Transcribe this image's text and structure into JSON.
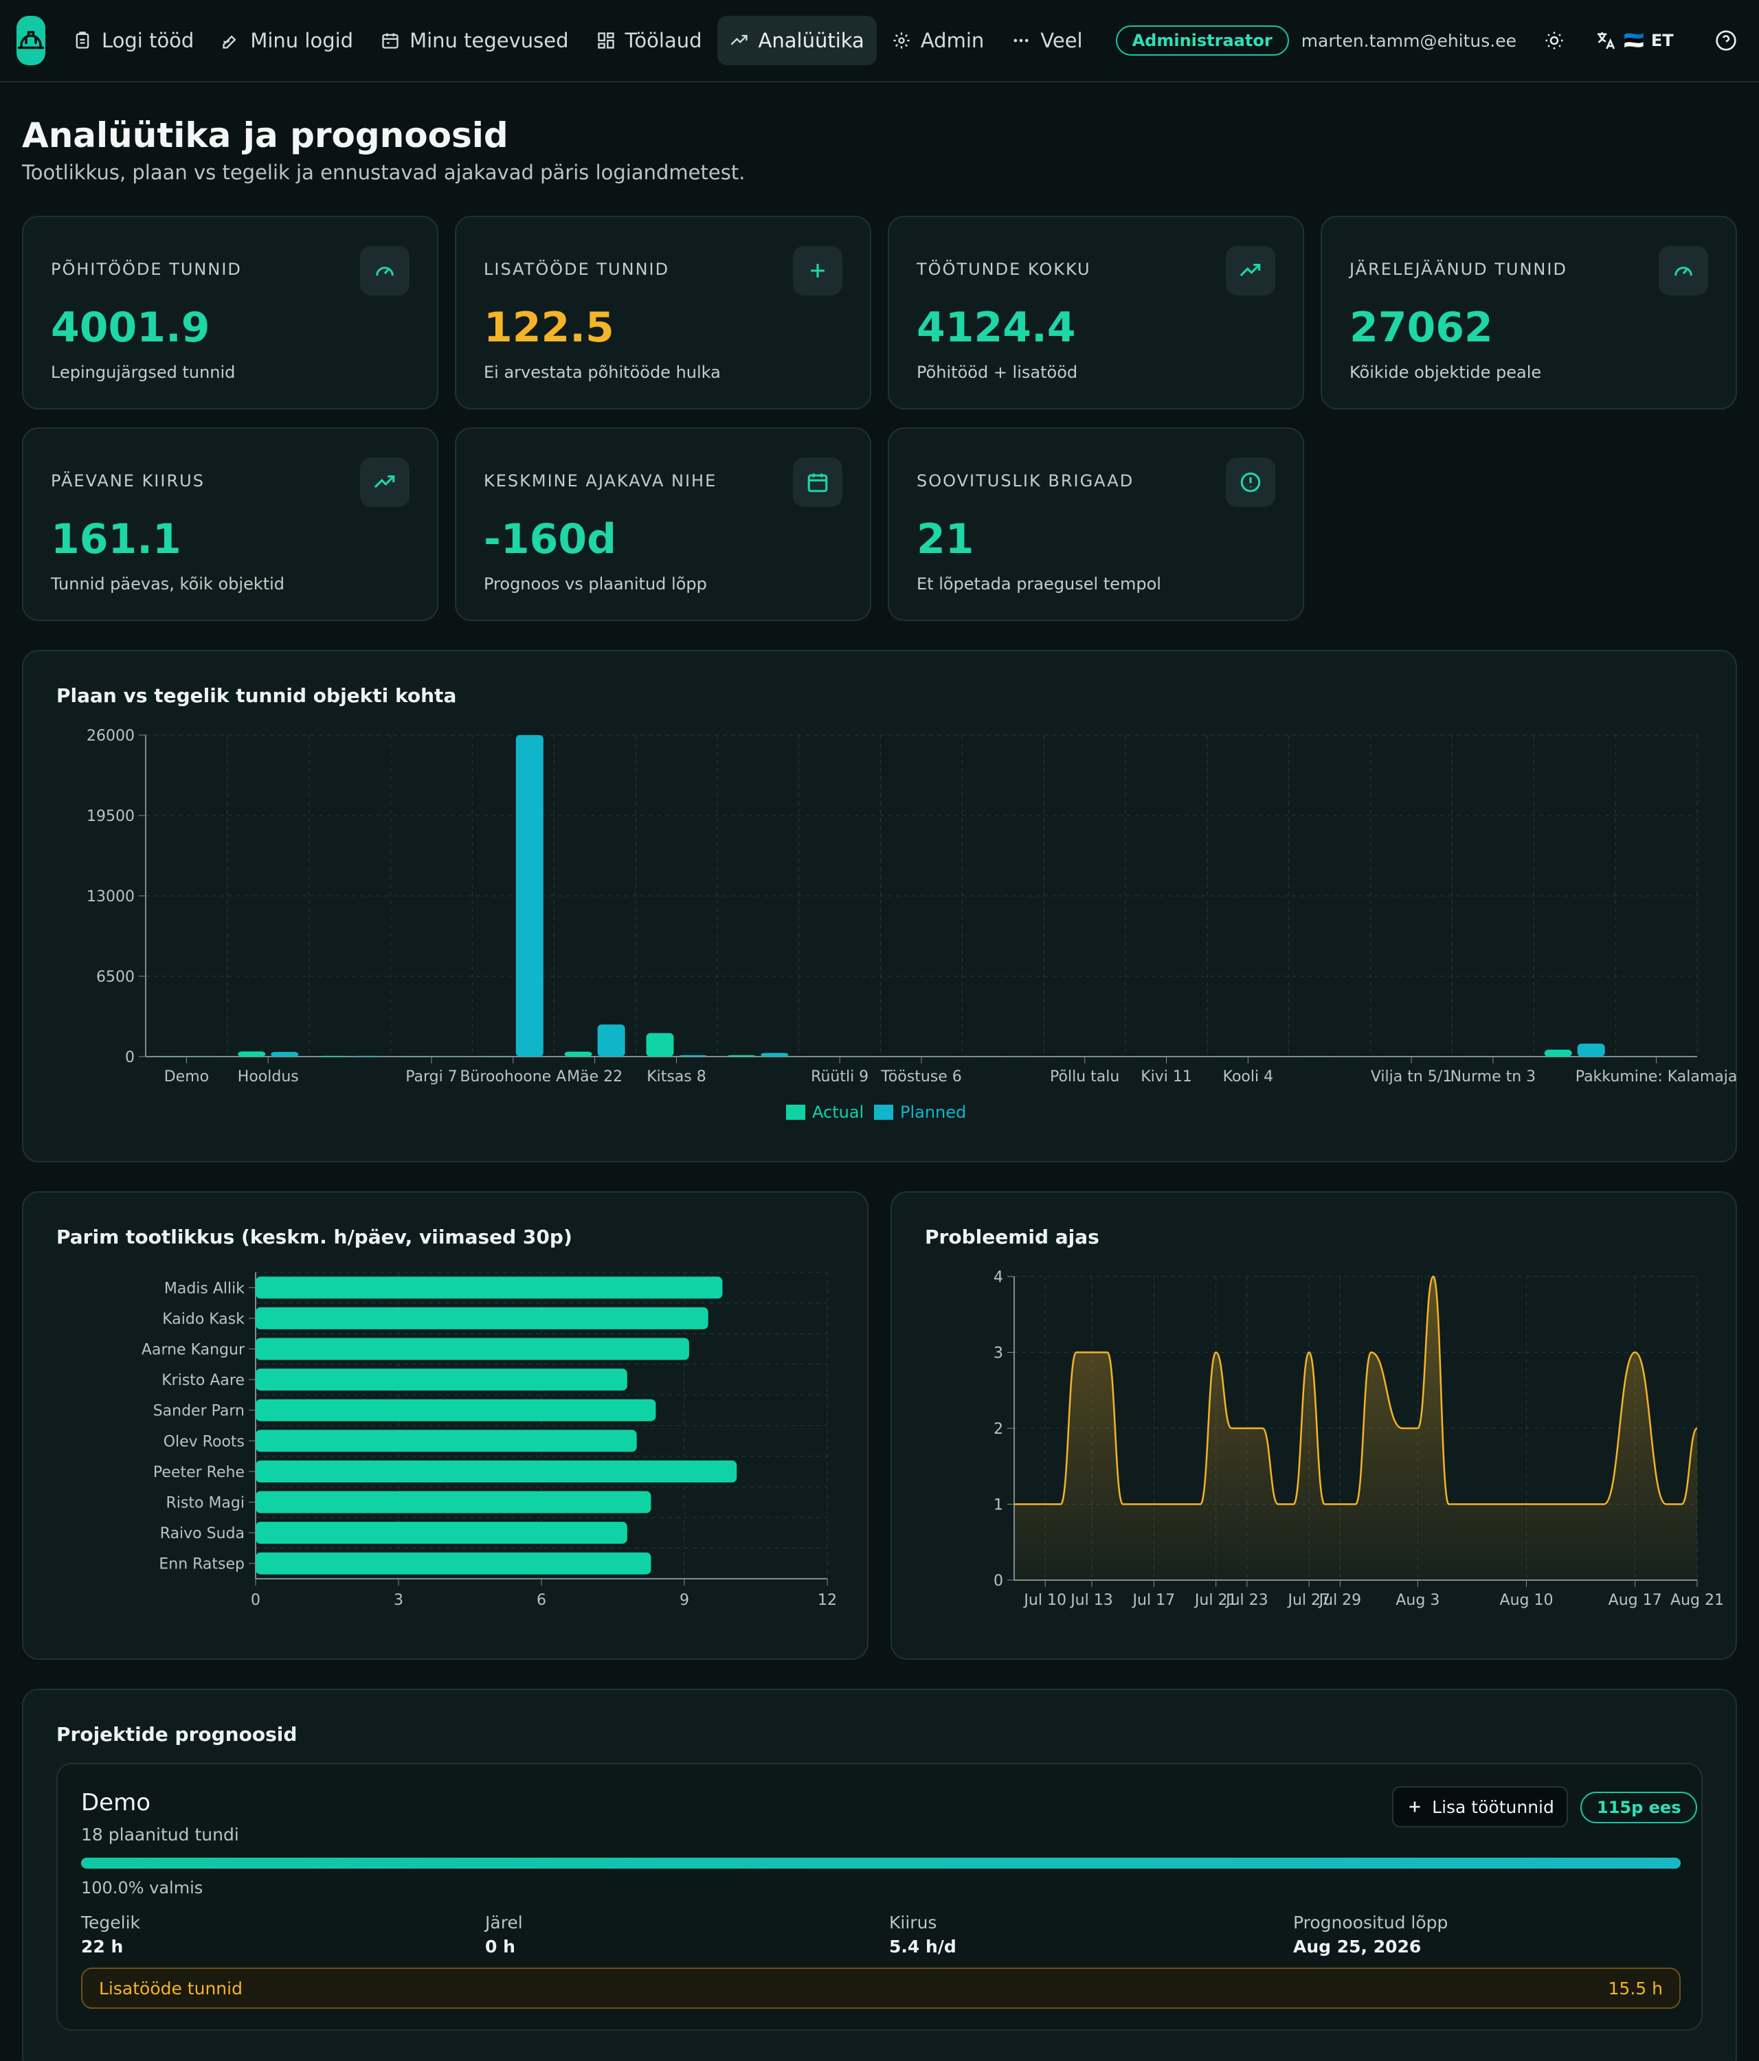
{
  "nav": {
    "items": [
      {
        "label": "Logi tööd",
        "icon": "clipboard-icon"
      },
      {
        "label": "Minu logid",
        "icon": "pencil-icon"
      },
      {
        "label": "Minu tegevused",
        "icon": "calendar-icon"
      },
      {
        "label": "Töölaud",
        "icon": "dashboard-icon"
      },
      {
        "label": "Analüütika",
        "icon": "trending-icon"
      },
      {
        "label": "Admin",
        "icon": "gear-icon"
      },
      {
        "label": "Veel",
        "icon": "more-icon"
      }
    ],
    "active": "Analüütika",
    "role": "Administraator",
    "email": "marten.tamm@ehitus.ee",
    "lang_flag": "🇪🇪",
    "lang": "ET"
  },
  "header": {
    "title": "Analüütika ja prognoosid",
    "subtitle": "Tootlikkus, plaan vs tegelik ja ennustavad ajakavad päris logiandmetest."
  },
  "stats": [
    {
      "label": "PÕHITÖÖDE TUNNID",
      "value": "4001.9",
      "desc": "Lepingujärgsed tunnid",
      "icon": "gauge-icon",
      "color": "#1ed6a6"
    },
    {
      "label": "LISATÖÖDE TUNNID",
      "value": "122.5",
      "desc": "Ei arvestata põhitööde hulka",
      "icon": "plus-icon",
      "color": "#f5b428"
    },
    {
      "label": "TÖÖTUNDE KOKKU",
      "value": "4124.4",
      "desc": "Põhitööd + lisatööd",
      "icon": "trending-icon",
      "color": "#1ed6a6"
    },
    {
      "label": "JÄRELEJÄÄNUD TUNNID",
      "value": "27062",
      "desc": "Kõikide objektide peale",
      "icon": "gauge-icon",
      "color": "#1ed6a6"
    },
    {
      "label": "PÄEVANE KIIRUS",
      "value": "161.1",
      "desc": "Tunnid päevas, kõik objektid",
      "icon": "trending-icon",
      "color": "#1ed6a6"
    },
    {
      "label": "KESKMINE AJAKAVA NIHE",
      "value": "-160d",
      "desc": "Prognoos vs plaanitud lõpp",
      "icon": "calendar-icon",
      "color": "#1ed6a6"
    },
    {
      "label": "SOOVITUSLIK BRIGAAD",
      "value": "21",
      "desc": "Et lõpetada praegusel tempol",
      "icon": "alert-icon",
      "color": "#1ed6a6"
    }
  ],
  "charts": {
    "plan_vs_actual": {
      "title": "Plaan vs tegelik tunnid objekti kohta",
      "chart_data": {
        "type": "bar",
        "categories": [
          "Demo",
          "Hooldus",
          "",
          "Pargi 7",
          "Büroohoone A",
          "Mäe 22",
          "Kitsas 8",
          "",
          "Rüütli 9",
          "Tööstuse 6",
          "",
          "Põllu talu",
          "Kivi 11",
          "Kooli 4",
          "",
          "Vilja tn 5/1",
          "Nurme tn 3",
          "",
          "Pakkumine: Kalamaja"
        ],
        "series": [
          {
            "name": "Actual",
            "color": "#10d3a5",
            "values": [
              22,
              420,
              60,
              30,
              30,
              400,
              1900,
              120,
              10,
              10,
              5,
              5,
              5,
              5,
              5,
              5,
              5,
              560,
              5
            ]
          },
          {
            "name": "Planned",
            "color": "#11b5c9",
            "values": [
              18,
              380,
              60,
              30,
              26000,
              2600,
              120,
              300,
              10,
              10,
              5,
              5,
              5,
              5,
              5,
              5,
              5,
              1050,
              5
            ]
          }
        ],
        "ylim": [
          0,
          26000
        ],
        "yticks": [
          "0",
          "6500",
          "13000",
          "19500",
          "26000"
        ],
        "grid": true,
        "legend": "bottom"
      }
    },
    "productivity": {
      "title": "Parim tootlikkus (keskm. h/päev, viimased 30p)",
      "chart_data": {
        "type": "bar",
        "orientation": "horizontal",
        "categories": [
          "Madis Allik",
          "Kaido Kask",
          "Aarne Kangur",
          "Kristo Aare",
          "Sander Parn",
          "Olev Roots",
          "Peeter Rehe",
          "Risto Magi",
          "Raivo Suda",
          "Enn Ratsep"
        ],
        "values": [
          9.8,
          9.5,
          9.1,
          7.8,
          8.4,
          8.0,
          10.1,
          8.3,
          7.8,
          8.3
        ],
        "xlim": [
          0,
          12
        ],
        "xticks": [
          "0",
          "3",
          "6",
          "9",
          "12"
        ],
        "color": "#10d3a5"
      }
    },
    "issues": {
      "title": "Probleemid ajas",
      "chart_data": {
        "type": "area",
        "x": [
          "Jul 8",
          "Jul 10",
          "Jul 11",
          "Jul 12",
          "Jul 13",
          "Jul 14",
          "Jul 15",
          "Jul 16",
          "Jul 17",
          "Jul 19",
          "Jul 20",
          "Jul 21",
          "Jul 22",
          "Jul 23",
          "Jul 24",
          "Jul 25",
          "Jul 26",
          "Jul 27",
          "Jul 28",
          "Jul 29",
          "Jul 30",
          "Jul 31",
          "Aug 2",
          "Aug 3",
          "Aug 4",
          "Aug 5",
          "Aug 6",
          "Aug 7",
          "Aug 10",
          "Aug 12",
          "Aug 13",
          "Aug 15",
          "Aug 17",
          "Aug 19",
          "Aug 20",
          "Aug 21"
        ],
        "values": [
          1,
          1,
          1,
          3,
          3,
          3,
          1,
          1,
          1,
          1,
          1,
          3,
          2,
          2,
          2,
          1,
          1,
          3,
          1,
          1,
          1,
          3,
          2,
          2,
          4,
          1,
          1,
          1,
          1,
          1,
          1,
          1,
          3,
          1,
          1,
          2
        ],
        "xticks": [
          "Jul 10",
          "Jul 13",
          "Jul 17",
          "Jul 21",
          "Jul 23",
          "Jul 27",
          "Jul 29",
          "Aug 3",
          "Aug 10",
          "Aug 17",
          "Aug 21"
        ],
        "ylim": [
          0,
          4
        ],
        "yticks": [
          "0",
          "1",
          "2",
          "3",
          "4"
        ],
        "color": "#f5b428"
      }
    }
  },
  "forecast": {
    "title": "Projektide prognoosid",
    "project": {
      "name": "Demo",
      "planned": "18 plaanitud tundi",
      "add_button": "Lisa töötunnid",
      "badge": "115p ees",
      "progress": 1.0,
      "progress_label": "100.0% valmis",
      "metrics": [
        {
          "label": "Tegelik",
          "value": "22 h"
        },
        {
          "label": "Järel",
          "value": "0 h"
        },
        {
          "label": "Kiirus",
          "value": "5.4 h/d"
        },
        {
          "label": "Prognoositud lõpp",
          "value": "Aug 25, 2026"
        }
      ],
      "extra_label": "Lisatööde tunnid",
      "extra_value": "15.5 h"
    }
  }
}
